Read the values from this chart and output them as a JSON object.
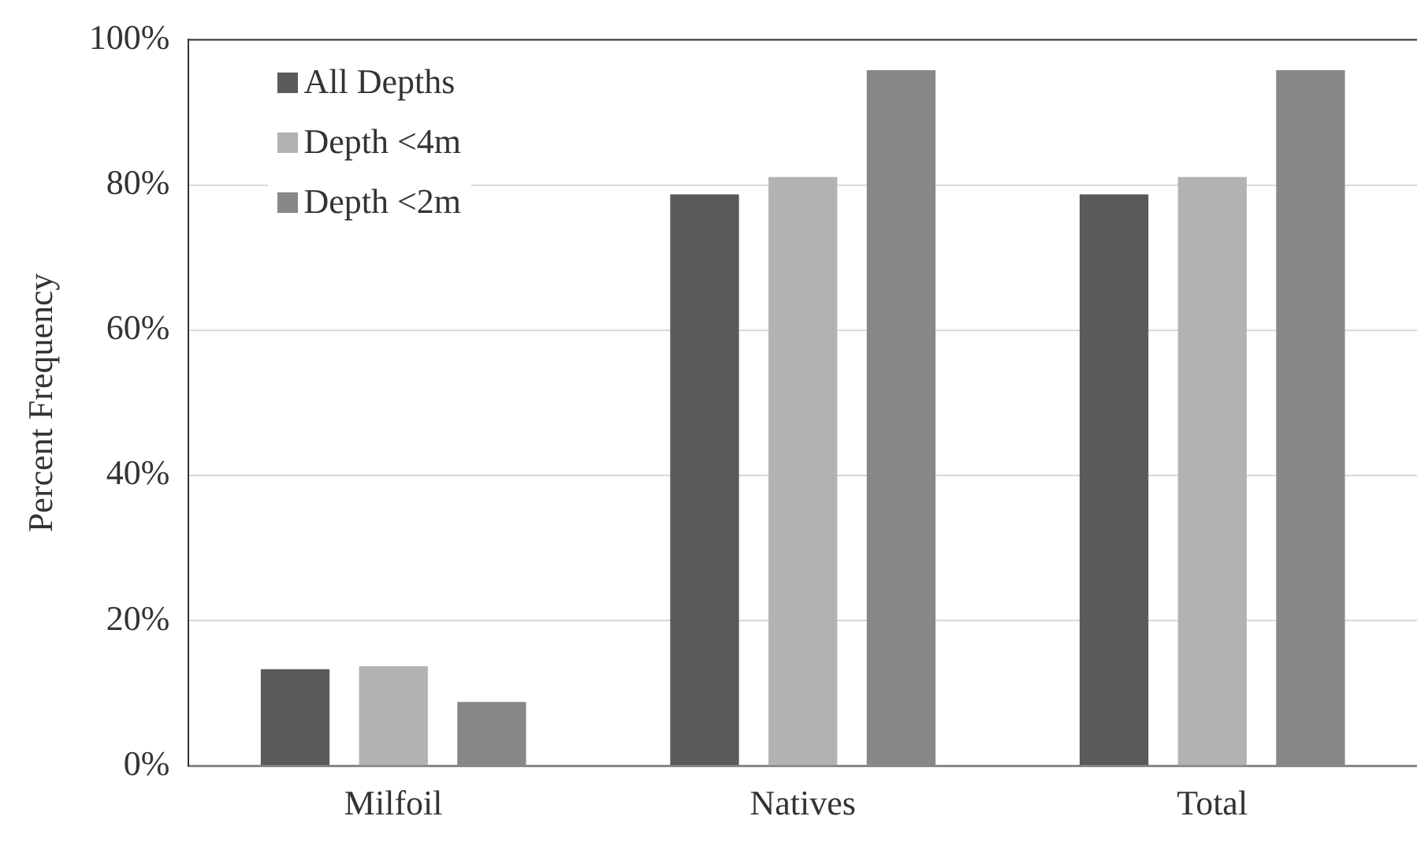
{
  "chart_data": {
    "type": "bar",
    "ylabel": "Percent Frequency",
    "categories": [
      "Milfoil",
      "Natives",
      "Total"
    ],
    "series": [
      {
        "name": "All Depths",
        "color": "#5a5a5a",
        "values": [
          13.3,
          78.7,
          78.7
        ]
      },
      {
        "name": "Depth <4m",
        "color": "#b2b2b2",
        "values": [
          13.7,
          81.1,
          81.1
        ]
      },
      {
        "name": "Depth <2m",
        "color": "#888888",
        "values": [
          8.8,
          95.8,
          95.8
        ]
      }
    ],
    "ylim": [
      0,
      100
    ],
    "yticks": [
      {
        "value": 0,
        "label": "0%"
      },
      {
        "value": 20,
        "label": "20%"
      },
      {
        "value": 40,
        "label": "40%"
      },
      {
        "value": 60,
        "label": "60%"
      },
      {
        "value": 80,
        "label": "80%"
      },
      {
        "value": 100,
        "label": "100%"
      }
    ],
    "grid": "y",
    "legend": "top left"
  }
}
